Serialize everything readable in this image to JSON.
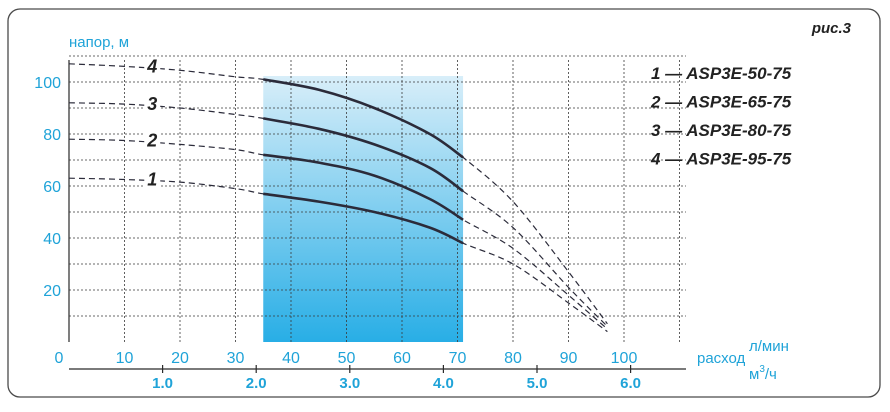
{
  "figure_label": "рис.3",
  "chart_data": {
    "type": "line",
    "ylabel": "напор, м",
    "xlabel_prefix": "расход",
    "xunit_primary": "л/мин",
    "xunit_secondary_base": "м",
    "xunit_secondary_exp": "3",
    "xunit_secondary_suffix": "/ч",
    "xlim": [
      0,
      110
    ],
    "ylim": [
      0,
      110
    ],
    "y_ticks": [
      20,
      40,
      60,
      80,
      100
    ],
    "x_ticks_lpm": [
      0,
      10,
      20,
      30,
      40,
      50,
      60,
      70,
      80,
      90,
      100
    ],
    "x_ticks_m3h": [
      "1.0",
      "2.0",
      "3.0",
      "4.0",
      "5.0",
      "6.0"
    ],
    "operating_range_lpm": [
      35,
      71
    ],
    "series": [
      {
        "label": "1",
        "name": "ASP3E-50-75",
        "x": [
          0,
          10,
          20,
          30,
          35,
          45,
          55,
          65,
          71,
          80,
          90,
          97
        ],
        "y": [
          63,
          62.5,
          61.5,
          59,
          57,
          54,
          50,
          44,
          38,
          30,
          15,
          4
        ]
      },
      {
        "label": "2",
        "name": "ASP3E-65-75",
        "x": [
          0,
          10,
          20,
          30,
          35,
          45,
          55,
          65,
          71,
          80,
          90,
          97
        ],
        "y": [
          78,
          77.5,
          76,
          74,
          72,
          69,
          64,
          55,
          47,
          36,
          18,
          5
        ]
      },
      {
        "label": "3",
        "name": "ASP3E-80-75",
        "x": [
          0,
          10,
          20,
          30,
          35,
          45,
          55,
          65,
          71,
          80,
          90,
          97
        ],
        "y": [
          92,
          91.5,
          90,
          87.5,
          86,
          82,
          76,
          67,
          58,
          44,
          21,
          6
        ]
      },
      {
        "label": "4",
        "name": "ASP3E-95-75",
        "x": [
          0,
          10,
          20,
          30,
          35,
          45,
          55,
          65,
          71,
          80,
          90,
          97
        ],
        "y": [
          107,
          106,
          104.5,
          102,
          101,
          97,
          90,
          80,
          71,
          54,
          27,
          7
        ]
      }
    ],
    "legend": [
      {
        "num": "1",
        "text": "ASP3E-50-75"
      },
      {
        "num": "2",
        "text": "ASP3E-65-75"
      },
      {
        "num": "3",
        "text": "ASP3E-80-75"
      },
      {
        "num": "4",
        "text": "ASP3E-95-75"
      }
    ],
    "legend_dash": "—",
    "colors": {
      "axis_text": "#1fa3d8",
      "fill_top": "#d8eef9",
      "fill_bottom": "#28aee6",
      "curve": "#2b2b3a"
    }
  }
}
